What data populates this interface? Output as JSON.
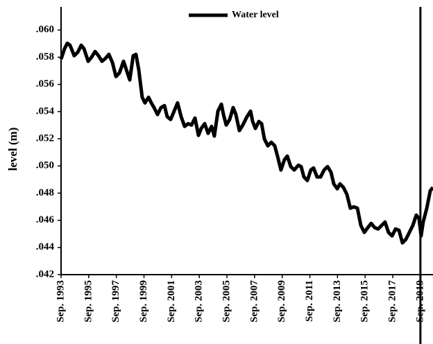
{
  "chart_data": {
    "type": "line",
    "y_label": "level (m)",
    "legend": "top",
    "vline": 2019.67,
    "xlim": [
      1993.67,
      2020.58
    ],
    "ylim": [
      0.042,
      0.0617
    ],
    "xticks": [
      {
        "value": 1993.67,
        "label": "Sep. 1993"
      },
      {
        "value": 1995.67,
        "label": "Sep. 1995"
      },
      {
        "value": 1997.67,
        "label": "Sep. 1997"
      },
      {
        "value": 1999.67,
        "label": "Sep. 1999"
      },
      {
        "value": 2001.67,
        "label": "Sep. 2001"
      },
      {
        "value": 2003.67,
        "label": "Sep. 2003"
      },
      {
        "value": 2005.67,
        "label": "Sep. 2005"
      },
      {
        "value": 2007.67,
        "label": "Sep. 2007"
      },
      {
        "value": 2009.67,
        "label": "Sep. 2009"
      },
      {
        "value": 2011.67,
        "label": "Sep. 2011"
      },
      {
        "value": 2013.67,
        "label": "Sep. 2013"
      },
      {
        "value": 2015.67,
        "label": "Sep. 2015"
      },
      {
        "value": 2017.67,
        "label": "Sep. 2017"
      },
      {
        "value": 2019.67,
        "label": "Sep. 2019"
      }
    ],
    "yticks": [
      {
        "value": 0.042,
        "label": ".042"
      },
      {
        "value": 0.044,
        "label": ".044"
      },
      {
        "value": 0.046,
        "label": ".046"
      },
      {
        "value": 0.048,
        "label": ".048"
      },
      {
        "value": 0.05,
        "label": ".050"
      },
      {
        "value": 0.052,
        "label": ".052"
      },
      {
        "value": 0.054,
        "label": ".054"
      },
      {
        "value": 0.056,
        "label": ".056"
      },
      {
        "value": 0.058,
        "label": ".058"
      },
      {
        "value": 0.06,
        "label": ".060"
      }
    ],
    "x": [
      1993.67,
      1993.92,
      1994.12,
      1994.32,
      1994.62,
      1994.88,
      1995.13,
      1995.33,
      1995.63,
      1995.88,
      1996.13,
      1996.38,
      1996.63,
      1996.88,
      1997.13,
      1997.39,
      1997.64,
      1997.89,
      1998.19,
      1998.39,
      1998.64,
      1998.89,
      1999.09,
      1999.29,
      1999.54,
      1999.74,
      2000.0,
      2000.2,
      2000.4,
      2000.65,
      2000.9,
      2001.15,
      2001.35,
      2001.6,
      2001.85,
      2002.1,
      2002.36,
      2002.61,
      2002.86,
      2003.11,
      2003.36,
      2003.61,
      2003.81,
      2004.06,
      2004.31,
      2004.56,
      2004.76,
      2005.02,
      2005.27,
      2005.42,
      2005.62,
      2005.87,
      2006.12,
      2006.32,
      2006.57,
      2006.82,
      2007.12,
      2007.38,
      2007.53,
      2007.73,
      2007.98,
      2008.18,
      2008.38,
      2008.63,
      2008.88,
      2009.13,
      2009.33,
      2009.58,
      2009.83,
      2010.04,
      2010.29,
      2010.54,
      2010.84,
      2011.04,
      2011.24,
      2011.49,
      2011.74,
      2011.94,
      2012.19,
      2012.45,
      2012.7,
      2012.95,
      2013.2,
      2013.4,
      2013.65,
      2013.85,
      2014.1,
      2014.35,
      2014.6,
      2014.85,
      2015.11,
      2015.36,
      2015.61,
      2015.86,
      2016.11,
      2016.36,
      2016.61,
      2016.86,
      2017.11,
      2017.36,
      2017.62,
      2017.87,
      2018.12,
      2018.37,
      2018.62,
      2018.87,
      2019.12,
      2019.37,
      2019.57,
      2019.72,
      2019.87,
      2020.13,
      2020.38,
      2020.58
    ],
    "series": [
      {
        "name": "Water level",
        "color": "#000000",
        "values": [
          0.05786,
          0.05862,
          0.05903,
          0.05888,
          0.05811,
          0.05837,
          0.05888,
          0.05862,
          0.0577,
          0.05801,
          0.05842,
          0.05811,
          0.0577,
          0.05791,
          0.05821,
          0.0576,
          0.05658,
          0.05684,
          0.0577,
          0.05709,
          0.05633,
          0.05811,
          0.05821,
          0.05709,
          0.05505,
          0.05464,
          0.05505,
          0.05464,
          0.05429,
          0.05378,
          0.05429,
          0.05444,
          0.05362,
          0.05342,
          0.05403,
          0.05464,
          0.05362,
          0.05291,
          0.05311,
          0.05301,
          0.05352,
          0.05225,
          0.05276,
          0.05311,
          0.0524,
          0.05291,
          0.0522,
          0.05403,
          0.05454,
          0.05378,
          0.05301,
          0.05342,
          0.05429,
          0.05378,
          0.0526,
          0.05301,
          0.05362,
          0.05403,
          0.05327,
          0.05276,
          0.05327,
          0.05311,
          0.05199,
          0.05148,
          0.05174,
          0.05148,
          0.05072,
          0.0497,
          0.05046,
          0.05072,
          0.04995,
          0.0497,
          0.05005,
          0.04995,
          0.04919,
          0.04893,
          0.0497,
          0.04985,
          0.04919,
          0.04919,
          0.0497,
          0.04995,
          0.04954,
          0.04868,
          0.04832,
          0.04868,
          0.04842,
          0.04791,
          0.04689,
          0.04699,
          0.04689,
          0.04562,
          0.04511,
          0.04546,
          0.04577,
          0.04546,
          0.04536,
          0.04562,
          0.04587,
          0.04511,
          0.04485,
          0.04536,
          0.04526,
          0.04434,
          0.0446,
          0.04511,
          0.04562,
          0.04638,
          0.04613,
          0.04485,
          0.04587,
          0.04689,
          0.04817,
          0.04842
        ]
      }
    ]
  }
}
